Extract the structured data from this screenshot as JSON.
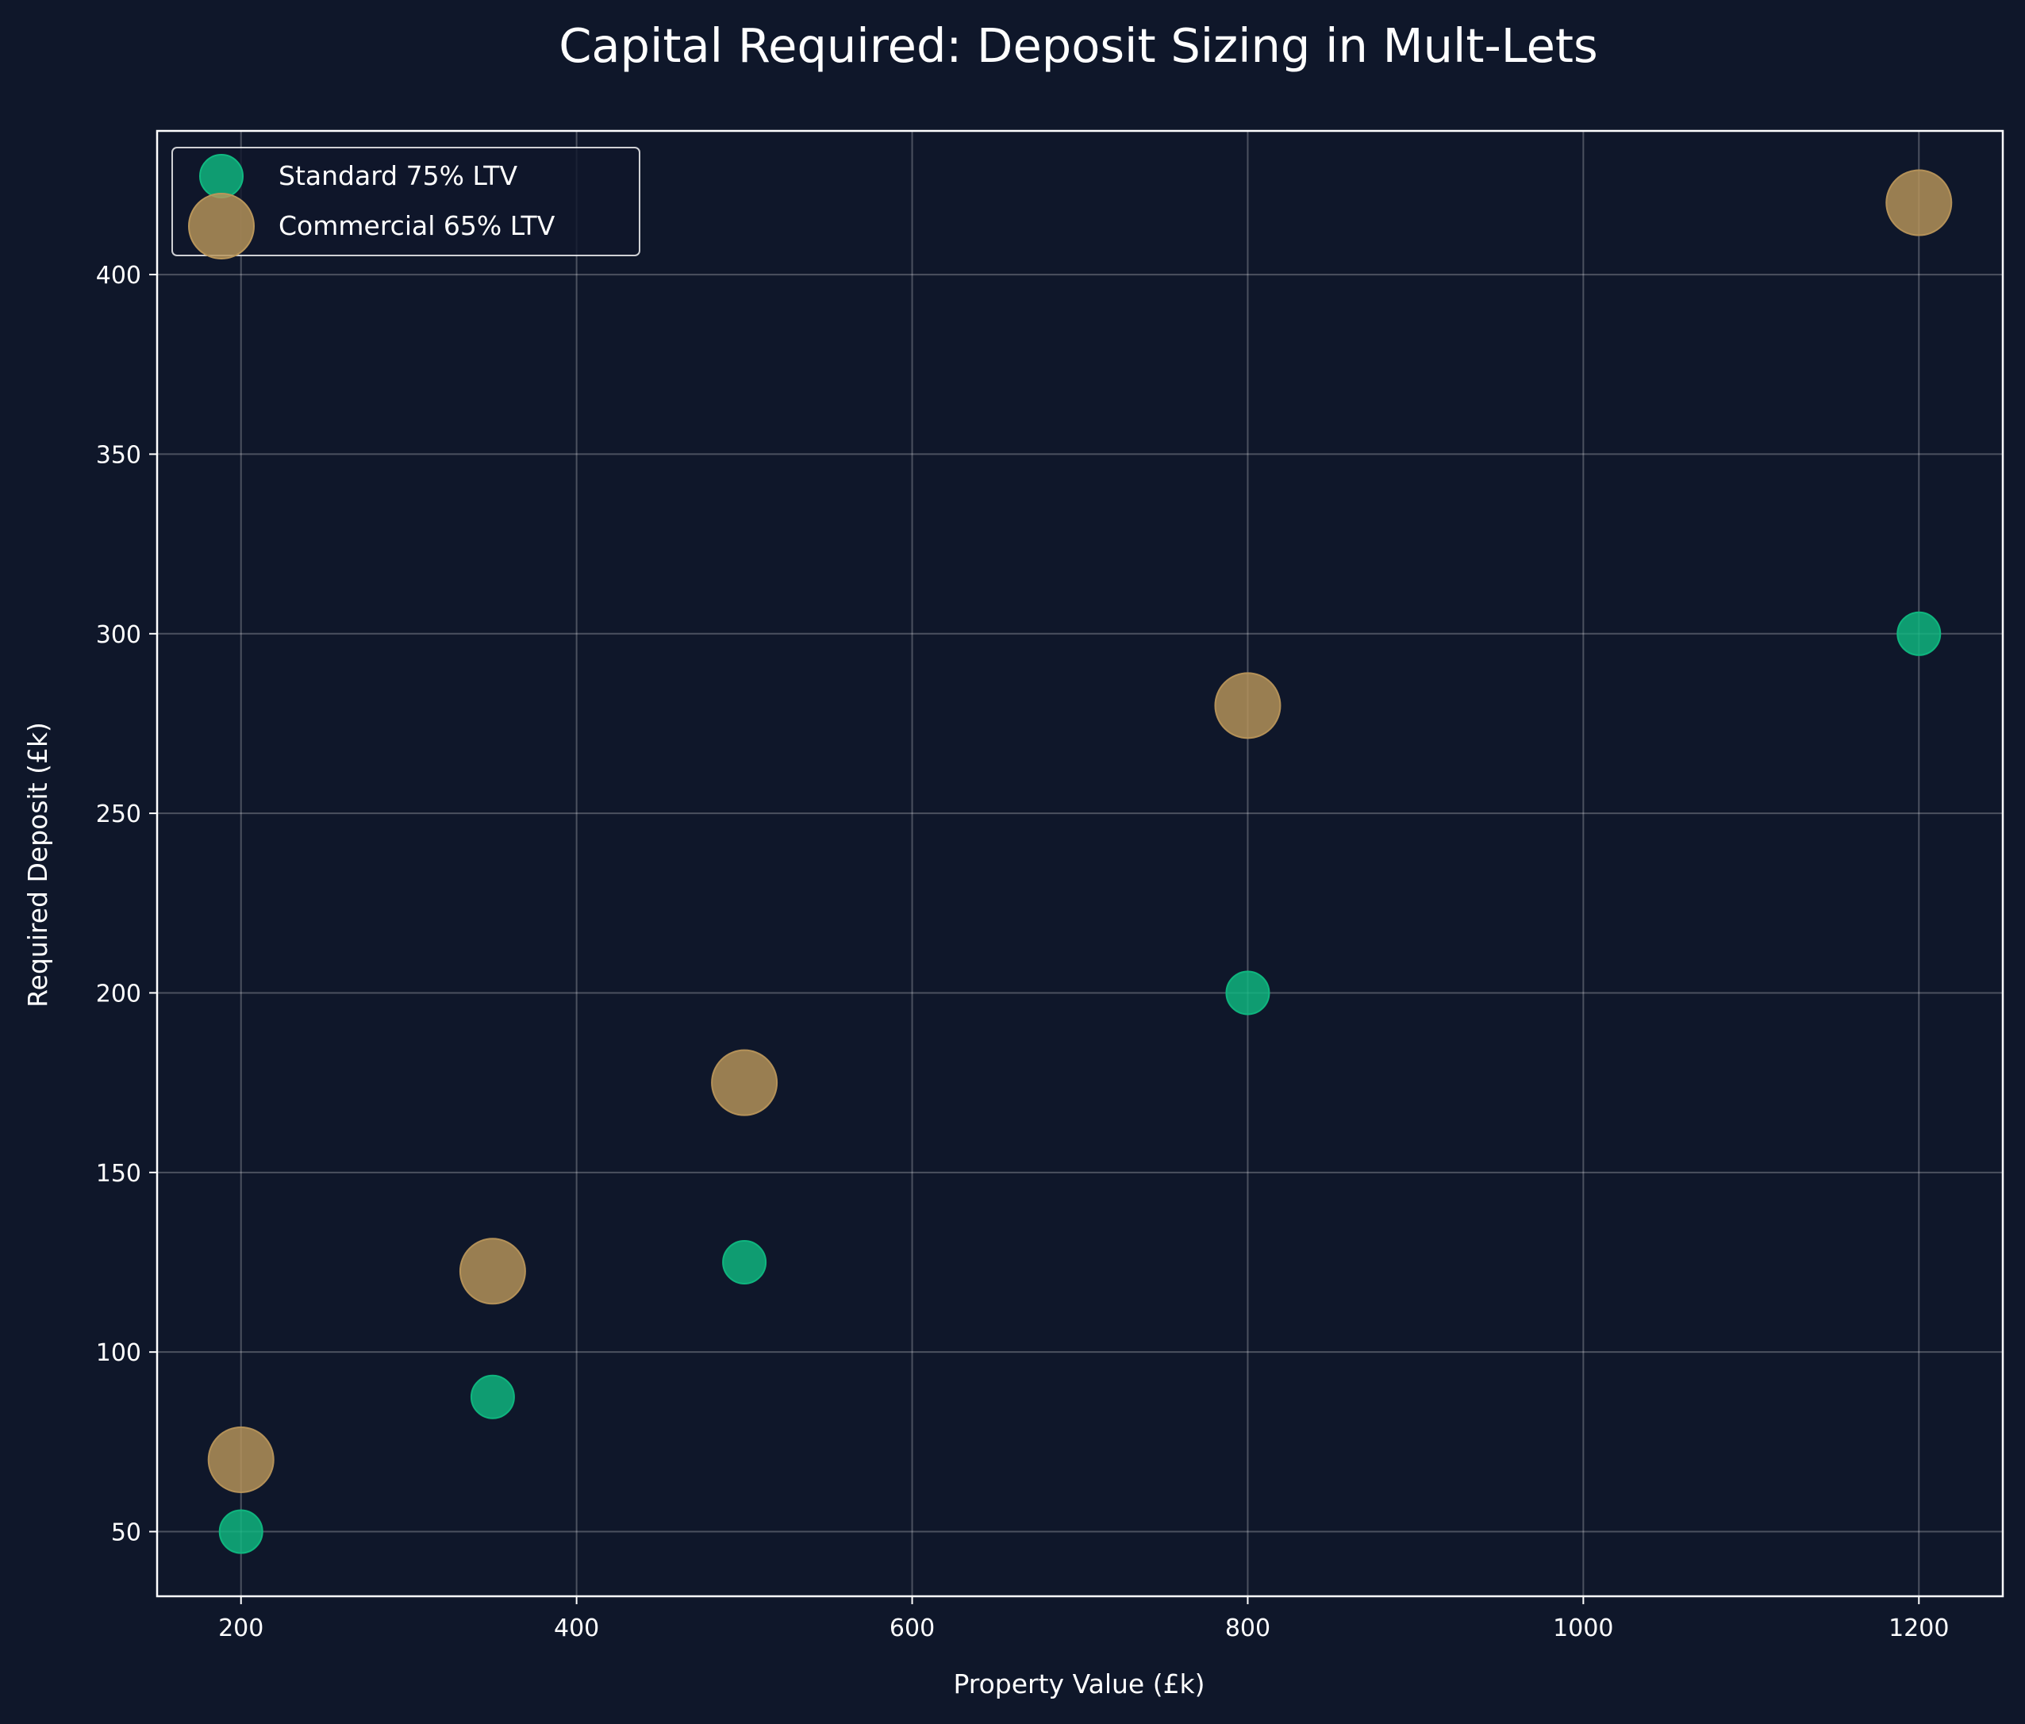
{
  "chart_data": {
    "type": "scatter",
    "title": "Capital Required: Deposit Sizing in Mult-Lets",
    "xlabel": "Property Value (£k)",
    "ylabel": "Required Deposit (£k)",
    "xlim": [
      150,
      1250
    ],
    "ylim": [
      32,
      440
    ],
    "xticks": [
      200,
      400,
      600,
      800,
      1000,
      1200
    ],
    "yticks": [
      50,
      100,
      150,
      200,
      250,
      300,
      350,
      400
    ],
    "grid": true,
    "legend_position": "top-left",
    "background_color": "#0f172a",
    "series": [
      {
        "name": "Standard 75% LTV",
        "color": "#10b981",
        "marker_size": "small",
        "points": [
          {
            "x": 200,
            "y": 50
          },
          {
            "x": 350,
            "y": 87.5
          },
          {
            "x": 500,
            "y": 125
          },
          {
            "x": 800,
            "y": 200
          },
          {
            "x": 1200,
            "y": 300
          }
        ]
      },
      {
        "name": "Commercial 65% LTV",
        "color": "#b8955a",
        "marker_size": "large",
        "points": [
          {
            "x": 200,
            "y": 70
          },
          {
            "x": 350,
            "y": 122.5
          },
          {
            "x": 500,
            "y": 175
          },
          {
            "x": 800,
            "y": 280
          },
          {
            "x": 1200,
            "y": 420
          }
        ]
      }
    ]
  }
}
